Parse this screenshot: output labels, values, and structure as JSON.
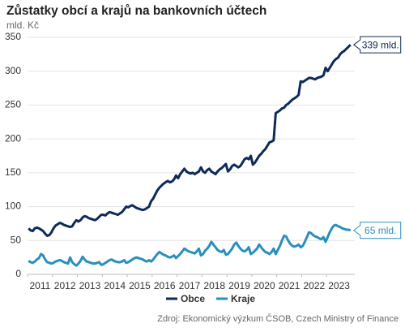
{
  "chart_data": {
    "type": "line",
    "title": "Zůstatky obcí a krajů na bankovních účtech",
    "subtitle": "mld. Kč",
    "source": "Zdroj: Ekonomický výzkum ČSOB, Czech Ministry of Finance",
    "xlim": [
      2011,
      2024
    ],
    "xticks": [
      2011,
      2012,
      2013,
      2014,
      2015,
      2016,
      2017,
      2018,
      2019,
      2020,
      2021,
      2022,
      2023
    ],
    "ylim": [
      0,
      350
    ],
    "yticks": [
      0,
      50,
      100,
      150,
      200,
      250,
      300,
      350
    ],
    "grid": true,
    "legend": "bottom",
    "annotations": [
      "339 mld.",
      "65 mld."
    ],
    "series": [
      {
        "name": "Obce",
        "color": "#0d2b57",
        "values": [
          68,
          65,
          64,
          68,
          69,
          68,
          66,
          64,
          60,
          57,
          58,
          62,
          68,
          72,
          74,
          76,
          75,
          73,
          72,
          71,
          70,
          71,
          76,
          80,
          78,
          80,
          84,
          86,
          85,
          83,
          82,
          81,
          80,
          82,
          85,
          88,
          88,
          87,
          90,
          92,
          91,
          90,
          89,
          88,
          90,
          92,
          96,
          100,
          99,
          101,
          102,
          100,
          98,
          97,
          96,
          95,
          96,
          98,
          100,
          108,
          112,
          118,
          124,
          128,
          131,
          134,
          136,
          138,
          136,
          137,
          140,
          146,
          142,
          148,
          152,
          156,
          152,
          150,
          149,
          150,
          148,
          150,
          152,
          158,
          152,
          150,
          154,
          156,
          152,
          150,
          148,
          152,
          155,
          157,
          160,
          163,
          152,
          155,
          160,
          162,
          160,
          158,
          160,
          165,
          170,
          172,
          170,
          175,
          162,
          165,
          170,
          175,
          178,
          182,
          185,
          190,
          195,
          196,
          198,
          238,
          240,
          242,
          245,
          246,
          250,
          252,
          255,
          258,
          260,
          262,
          265,
          285,
          284,
          286,
          288,
          290,
          290,
          289,
          288,
          290,
          291,
          292,
          294,
          305,
          300,
          305,
          310,
          315,
          318,
          320,
          325,
          328,
          330,
          333,
          336,
          339
        ]
      },
      {
        "name": "Kraje",
        "color": "#2a8fbd",
        "values": [
          20,
          18,
          17,
          19,
          22,
          24,
          30,
          28,
          22,
          18,
          17,
          16,
          17,
          19,
          20,
          21,
          20,
          18,
          17,
          16,
          25,
          18,
          15,
          13,
          16,
          20,
          26,
          22,
          19,
          18,
          17,
          16,
          16,
          17,
          18,
          14,
          15,
          17,
          19,
          21,
          22,
          20,
          19,
          18,
          18,
          19,
          21,
          17,
          18,
          20,
          22,
          24,
          25,
          24,
          23,
          22,
          20,
          19,
          21,
          19,
          22,
          26,
          30,
          33,
          31,
          29,
          28,
          26,
          25,
          26,
          28,
          24,
          27,
          30,
          34,
          38,
          36,
          34,
          33,
          32,
          31,
          34,
          38,
          28,
          30,
          35,
          38,
          42,
          48,
          44,
          40,
          36,
          34,
          33,
          36,
          29,
          30,
          34,
          38,
          44,
          47,
          42,
          38,
          35,
          34,
          36,
          40,
          30,
          32,
          35,
          38,
          44,
          40,
          36,
          33,
          32,
          30,
          33,
          38,
          30,
          36,
          42,
          50,
          57,
          56,
          50,
          45,
          42,
          41,
          42,
          44,
          40,
          42,
          48,
          55,
          62,
          61,
          58,
          56,
          55,
          53,
          52,
          55,
          48,
          55,
          62,
          68,
          72,
          73,
          71,
          70,
          68,
          67,
          66,
          66,
          65
        ]
      }
    ]
  }
}
